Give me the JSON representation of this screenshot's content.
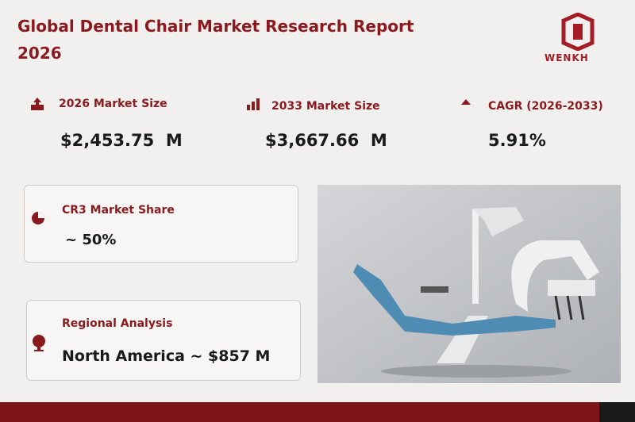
{
  "header": {
    "title": "Global Dental Chair Market Research Report 2026",
    "logo": "WENKH"
  },
  "stats": [
    {
      "label": "2026 Market Size",
      "value": "$2,453.75  M"
    },
    {
      "label": "2033 Market Size",
      "value": "$3,667.66  M"
    },
    {
      "label": "CAGR (2026-2033)",
      "value": "5.91%"
    }
  ],
  "cards": [
    {
      "label": "CR3 Market Share",
      "value": "~ 50%"
    },
    {
      "label": "Regional Analysis",
      "value": "North America ~ $857 M"
    }
  ]
}
